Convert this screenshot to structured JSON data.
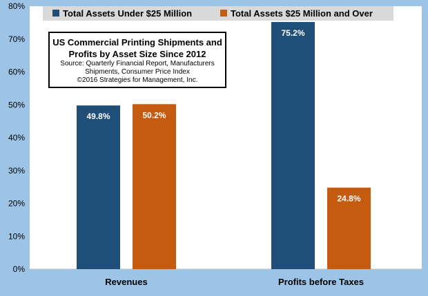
{
  "chart_data": {
    "type": "bar",
    "title": "US Commercial Printing Shipments and Profits by Asset Size Since 2012",
    "title_lines": [
      "US Commercial Printing Shipments and",
      "Profits by Asset Size Since 2012"
    ],
    "subtitle_lines": [
      "Source: Quarterly Financial Report, Manufacturers",
      "Shipments, Consumer Price Index",
      "©2016 Strategies for Management, Inc."
    ],
    "categories": [
      "Revenues",
      "Profits before Taxes"
    ],
    "series": [
      {
        "name": "Total Assets Under $25 Million",
        "values": [
          49.8,
          75.2
        ],
        "color": "#1f4e79"
      },
      {
        "name": "Total Assets $25 Million and Over",
        "values": [
          50.2,
          24.8
        ],
        "color": "#c55a11"
      }
    ],
    "data_labels": [
      [
        "49.8%",
        "75.2%"
      ],
      [
        "50.2%",
        "24.8%"
      ]
    ],
    "ylim": [
      0,
      80
    ],
    "yticks": [
      "0%",
      "10%",
      "20%",
      "30%",
      "40%",
      "50%",
      "60%",
      "70%",
      "80%"
    ],
    "grid": false,
    "legend_position": "top",
    "plot_background": "#ffffff",
    "page_background": "#9dc3e6"
  }
}
